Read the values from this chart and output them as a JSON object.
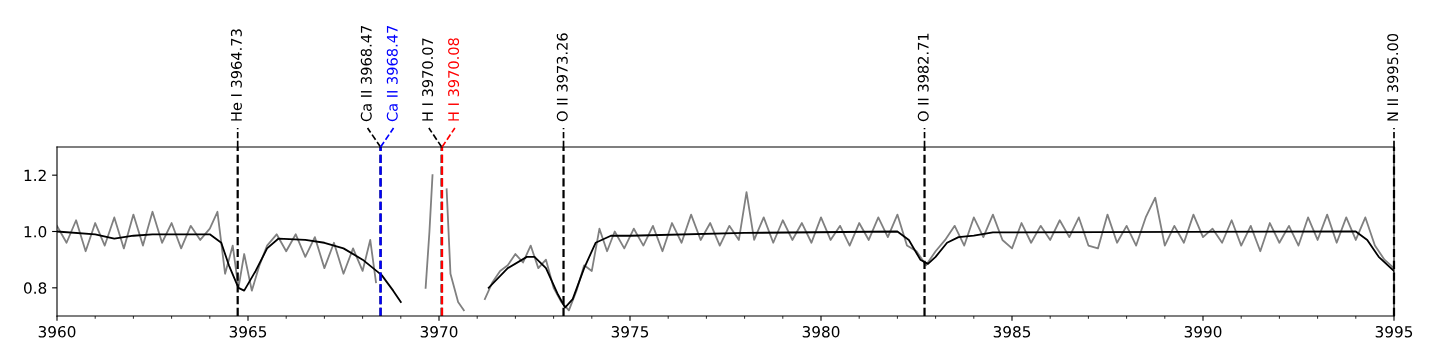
{
  "chart_data": {
    "type": "line",
    "xlim": [
      3960,
      3995
    ],
    "ylim": [
      0.7,
      1.3
    ],
    "xticks": [
      3960,
      3965,
      3970,
      3975,
      3980,
      3985,
      3990,
      3995
    ],
    "yticks": [
      0.8,
      {
        "value": 1.0,
        "label": "1.0"
      },
      1.2
    ],
    "grid": false,
    "marker": "none",
    "line_style": "solid",
    "series": [
      {
        "color": "#808080",
        "x": [
          3960.0,
          3960.25,
          3960.5,
          3960.75,
          3961.0,
          3961.25,
          3961.5,
          3961.75,
          3962.0,
          3962.25,
          3962.5,
          3962.75,
          3963.0,
          3963.25,
          3963.5,
          3963.75,
          3964.0,
          3964.2,
          3964.4,
          3964.6,
          3964.75,
          3964.9,
          3965.1,
          3965.3,
          3965.5,
          3965.75,
          3966.0,
          3966.25,
          3966.5,
          3966.75,
          3967.0,
          3967.25,
          3967.5,
          3967.75,
          3968.0,
          3968.2,
          3968.35,
          3968.45,
          3969.0,
          3969.55,
          3969.65,
          3969.75,
          3969.83,
          3970.0,
          3970.2,
          3970.25,
          3970.3,
          3970.5,
          3970.65,
          3970.75,
          3970.9,
          3971.05,
          3971.2,
          3971.4,
          3971.6,
          3971.8,
          3972.0,
          3972.2,
          3972.4,
          3972.6,
          3972.8,
          3973.0,
          3973.2,
          3973.4,
          3973.6,
          3973.8,
          3974.0,
          3974.2,
          3974.4,
          3974.6,
          3974.85,
          3975.1,
          3975.35,
          3975.6,
          3975.85,
          3976.1,
          3976.35,
          3976.6,
          3976.85,
          3977.1,
          3977.35,
          3977.6,
          3977.85,
          3978.05,
          3978.25,
          3978.5,
          3978.75,
          3979.0,
          3979.25,
          3979.5,
          3979.75,
          3980.0,
          3980.25,
          3980.5,
          3980.75,
          3981.0,
          3981.25,
          3981.5,
          3981.75,
          3982.0,
          3982.25,
          3982.5,
          3982.75,
          3983.0,
          3983.25,
          3983.5,
          3983.75,
          3984.0,
          3984.25,
          3984.5,
          3984.75,
          3985.0,
          3985.25,
          3985.5,
          3985.75,
          3986.0,
          3986.25,
          3986.5,
          3986.75,
          3987.0,
          3987.25,
          3987.5,
          3987.75,
          3988.0,
          3988.25,
          3988.5,
          3988.75,
          3989.0,
          3989.25,
          3989.5,
          3989.75,
          3990.0,
          3990.25,
          3990.5,
          3990.75,
          3991.0,
          3991.25,
          3991.5,
          3991.75,
          3992.0,
          3992.25,
          3992.5,
          3992.75,
          3993.0,
          3993.25,
          3993.5,
          3993.75,
          3994.0,
          3994.25,
          3994.5,
          3994.75,
          3995.0
        ],
        "values": [
          1.02,
          0.96,
          1.04,
          0.93,
          1.03,
          0.95,
          1.05,
          0.94,
          1.06,
          0.95,
          1.07,
          0.96,
          1.03,
          0.94,
          1.02,
          0.97,
          1.01,
          1.07,
          0.85,
          0.95,
          0.8,
          0.92,
          0.79,
          0.88,
          0.95,
          0.99,
          0.93,
          0.99,
          0.91,
          0.98,
          0.87,
          0.96,
          0.85,
          0.94,
          0.86,
          0.97,
          0.82,
          null,
          null,
          null,
          0.8,
          1.0,
          1.2,
          null,
          1.15,
          1.0,
          0.85,
          0.75,
          0.72,
          null,
          null,
          null,
          0.76,
          0.82,
          0.86,
          0.88,
          0.92,
          0.89,
          0.95,
          0.87,
          0.9,
          0.8,
          0.75,
          0.72,
          0.79,
          0.88,
          0.86,
          1.01,
          0.93,
          1.0,
          0.94,
          1.01,
          0.95,
          1.02,
          0.93,
          1.03,
          0.96,
          1.06,
          0.97,
          1.03,
          0.95,
          1.02,
          0.97,
          1.14,
          0.97,
          1.05,
          0.96,
          1.04,
          0.97,
          1.03,
          0.96,
          1.05,
          0.97,
          1.02,
          0.95,
          1.03,
          0.97,
          1.05,
          0.98,
          1.06,
          0.95,
          0.93,
          0.88,
          0.93,
          0.97,
          1.02,
          0.95,
          1.05,
          0.98,
          1.06,
          0.97,
          0.94,
          1.03,
          0.96,
          1.02,
          0.97,
          1.04,
          0.98,
          1.05,
          0.95,
          0.94,
          1.06,
          0.96,
          1.02,
          0.95,
          1.05,
          1.12,
          0.95,
          1.02,
          0.96,
          1.06,
          0.98,
          1.01,
          0.96,
          1.04,
          0.95,
          1.02,
          0.93,
          1.03,
          0.96,
          1.02,
          0.95,
          1.05,
          0.97,
          1.06,
          0.96,
          1.05,
          0.97,
          1.05,
          0.95,
          0.9,
          0.87
        ]
      },
      {
        "color": "#000000",
        "x": [
          3960,
          3961,
          3961.5,
          3962,
          3962.5,
          3964.0,
          3964.3,
          3964.5,
          3964.75,
          3964.9,
          3965.2,
          3965.5,
          3965.8,
          3966.5,
          3967,
          3967.5,
          3968,
          3968.5,
          3968.8,
          3969.0,
          3969.2,
          3970.0,
          3970.9,
          3971.3,
          3971.8,
          3972.3,
          3972.5,
          3972.8,
          3973.1,
          3973.3,
          3973.5,
          3973.8,
          3974.1,
          3974.5,
          3975,
          3978,
          3982,
          3982.3,
          3982.6,
          3982.8,
          3983,
          3983.3,
          3983.6,
          3984,
          3984.5,
          3994,
          3994.3,
          3994.6,
          3995
        ],
        "values": [
          1.0,
          0.99,
          0.975,
          0.985,
          0.99,
          0.99,
          0.96,
          0.88,
          0.8,
          0.79,
          0.86,
          0.94,
          0.975,
          0.97,
          0.96,
          0.94,
          0.9,
          0.845,
          0.79,
          0.75,
          null,
          null,
          null,
          0.8,
          0.87,
          0.91,
          0.91,
          0.87,
          0.78,
          0.73,
          0.76,
          0.87,
          0.96,
          0.985,
          0.985,
          0.995,
          1.0,
          0.97,
          0.9,
          0.885,
          0.91,
          0.96,
          0.98,
          0.985,
          0.997,
          1.0,
          0.97,
          0.91,
          0.86
        ]
      }
    ],
    "ref_lines": [
      {
        "axis": "x",
        "value": 3964.73,
        "label": "He I 3964.73",
        "color": "#000000",
        "line_style": "dashed"
      },
      {
        "axis": "x",
        "value": 3968.47,
        "label": "Ca II 3968.47",
        "color": "#000000",
        "line_style": "dashed"
      },
      {
        "axis": "x",
        "value": 3968.47,
        "label": "Ca II 3968.47",
        "color": "#0000ff",
        "line_style": "dashed"
      },
      {
        "axis": "x",
        "value": 3970.07,
        "label": "H I 3970.07",
        "color": "#000000",
        "line_style": "dashed"
      },
      {
        "axis": "x",
        "value": 3970.08,
        "label": "H I 3970.08",
        "color": "#ff0000",
        "line_style": "dashed"
      },
      {
        "axis": "x",
        "value": 3973.26,
        "label": "O II 3973.26",
        "color": "#000000",
        "line_style": "dashed"
      },
      {
        "axis": "x",
        "value": 3982.71,
        "label": "O II 3982.71",
        "color": "#000000",
        "line_style": "dashed"
      },
      {
        "axis": "x",
        "value": 3995.0,
        "label": "N II 3995.00",
        "color": "#000000",
        "line_style": "dashed"
      }
    ]
  }
}
